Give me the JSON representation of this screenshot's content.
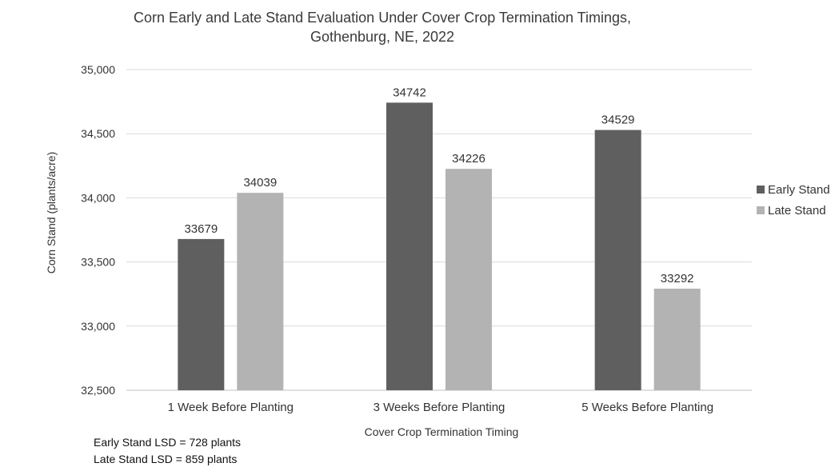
{
  "chart_data": {
    "type": "bar",
    "title_lines": [
      "Corn Early and Late Stand Evaluation Under Cover Crop Termination Timings,",
      "Gothenburg, NE, 2022"
    ],
    "xlabel": "Cover Crop Termination Timing",
    "ylabel": "Corn Stand (plants/acre)",
    "categories": [
      "1 Week Before Planting",
      "3 Weeks Before Planting",
      "5 Weeks Before Planting"
    ],
    "series": [
      {
        "name": "Early Stand",
        "color": "#5f5f5f",
        "values": [
          33679,
          34742,
          34529
        ]
      },
      {
        "name": "Late Stand",
        "color": "#b3b3b3",
        "values": [
          34039,
          34226,
          33292
        ]
      }
    ],
    "ylim": [
      32500,
      35000
    ],
    "yticks": [
      32500,
      33000,
      33500,
      34000,
      34500,
      35000
    ],
    "ytick_labels": [
      "32,500",
      "33,000",
      "33,500",
      "34,000",
      "34,500",
      "35,000"
    ],
    "grid": true,
    "legend_position": "right",
    "data_labels": true
  },
  "notes": [
    "Early Stand LSD = 728 plants",
    "Late Stand LSD = 859 plants"
  ]
}
